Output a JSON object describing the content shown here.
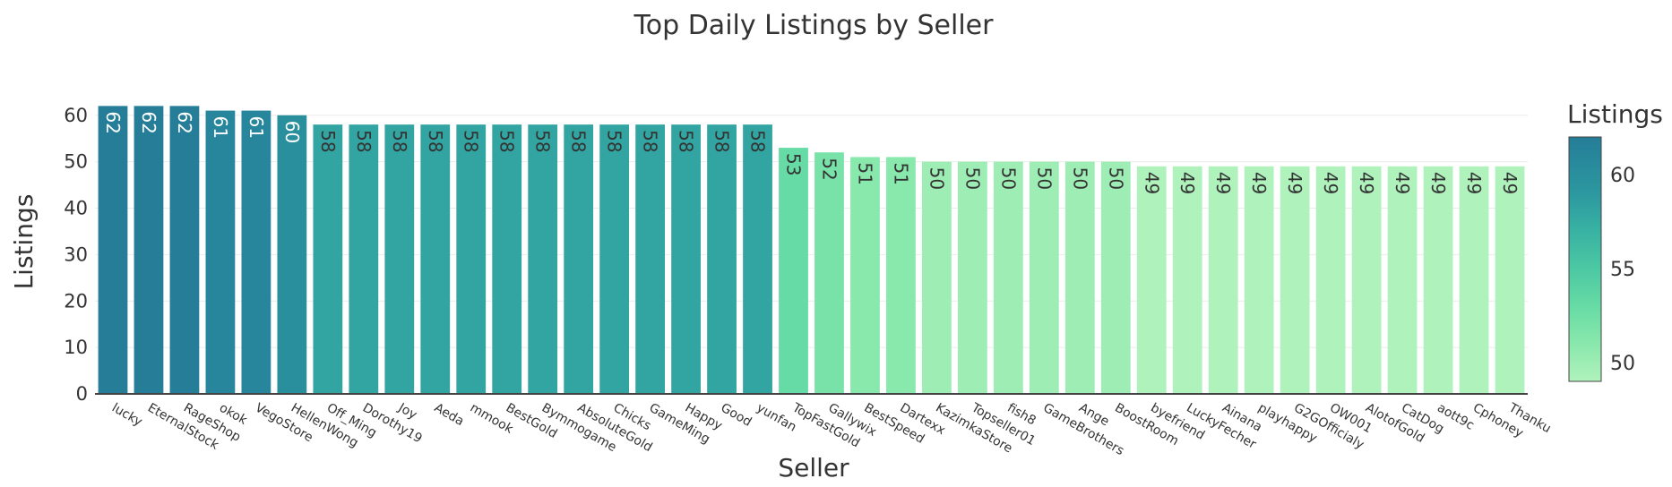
{
  "chart_data": {
    "type": "bar",
    "title": "Top Daily Listings by Seller",
    "xlabel": "Seller",
    "ylabel": "Listings",
    "ylim": [
      0,
      64
    ],
    "yticks": [
      0,
      10,
      20,
      30,
      40,
      50,
      60
    ],
    "grid": true,
    "categories": [
      "lucky",
      "EternalStock",
      "RageShop",
      "okok",
      "VegoStore",
      "HellenWong",
      "Off_Ming",
      "Dorothy19",
      "Joy",
      "Aeda",
      "mmook",
      "BestGold",
      "Bymmogame",
      "AbsoluteGold",
      "Chicks",
      "GameMing",
      "Happy",
      "Good",
      "yunfan",
      "TopFastGold",
      "Gallywix",
      "BestSpeed",
      "Dartexx",
      "KazimkaStore",
      "Topseller01",
      "fish8",
      "GameBrothers",
      "Ange",
      "BoostRoom",
      "byefriend",
      "LuckyFecher",
      "Ainana",
      "playhappy",
      "G2GOfficialy",
      "OW001",
      "AlotofGold",
      "CatDog",
      "aott9c",
      "Cphoney",
      "Thanku"
    ],
    "values": [
      62,
      62,
      62,
      61,
      61,
      60,
      58,
      58,
      58,
      58,
      58,
      58,
      58,
      58,
      58,
      58,
      58,
      58,
      58,
      53,
      52,
      51,
      51,
      50,
      50,
      50,
      50,
      50,
      50,
      49,
      49,
      49,
      49,
      49,
      49,
      49,
      49,
      49,
      49,
      49
    ],
    "colorscale": {
      "title": "Listings",
      "min": 49,
      "max": 62,
      "ticks": [
        50,
        55,
        60
      ],
      "stops": [
        {
          "value": 49,
          "color": "#b0f2bc"
        },
        {
          "value": 51,
          "color": "#89e8ac"
        },
        {
          "value": 53,
          "color": "#67dba5"
        },
        {
          "value": 55,
          "color": "#4cc8a3"
        },
        {
          "value": 57,
          "color": "#38b2a3"
        },
        {
          "value": 59,
          "color": "#2c98a0"
        },
        {
          "value": 62,
          "color": "#257d98"
        }
      ]
    }
  }
}
